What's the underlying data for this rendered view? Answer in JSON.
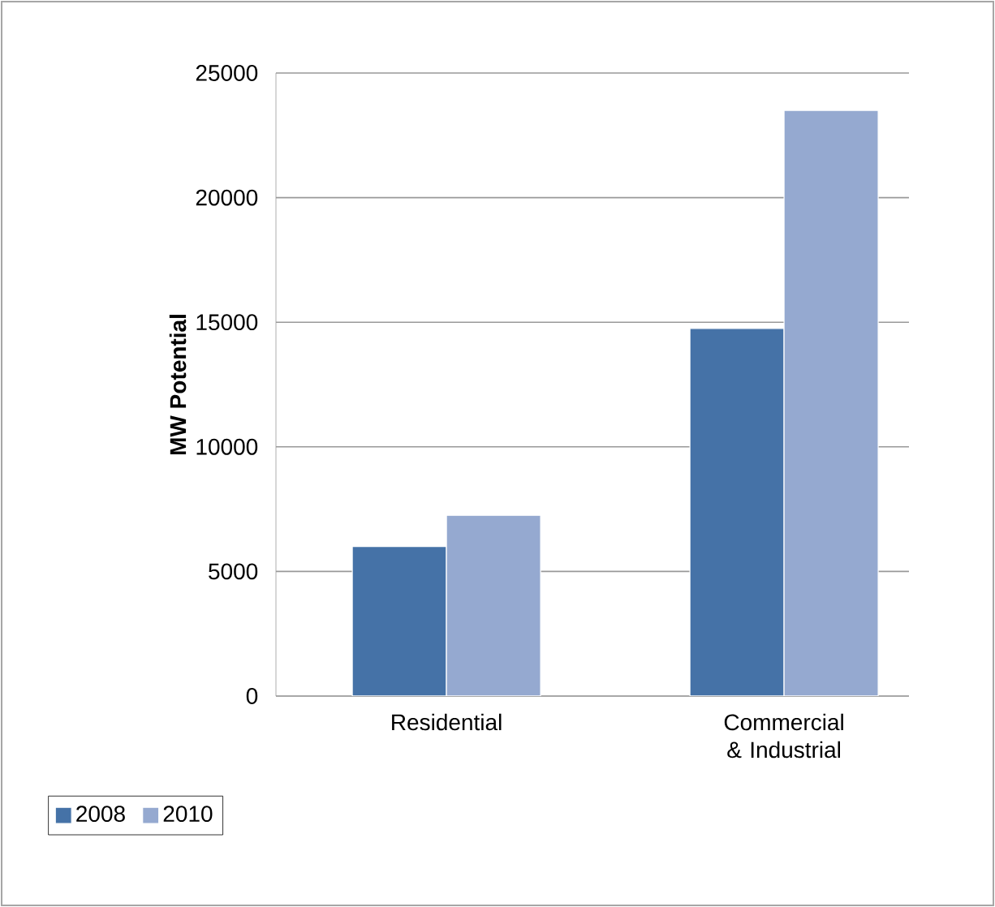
{
  "chart_data": {
    "type": "bar",
    "ylabel": "MW Potential",
    "categories": [
      "Residential",
      "Commercial & Industrial"
    ],
    "series": [
      {
        "name": "2008",
        "color": "#4572a7",
        "values": [
          6000,
          14750
        ]
      },
      {
        "name": "2010",
        "color": "#95a9d0",
        "values": [
          7250,
          23500
        ]
      }
    ],
    "ylim": [
      0,
      25000
    ],
    "yticks": [
      0,
      5000,
      10000,
      15000,
      20000,
      25000
    ],
    "grid": "y",
    "legend": "bottom left"
  }
}
